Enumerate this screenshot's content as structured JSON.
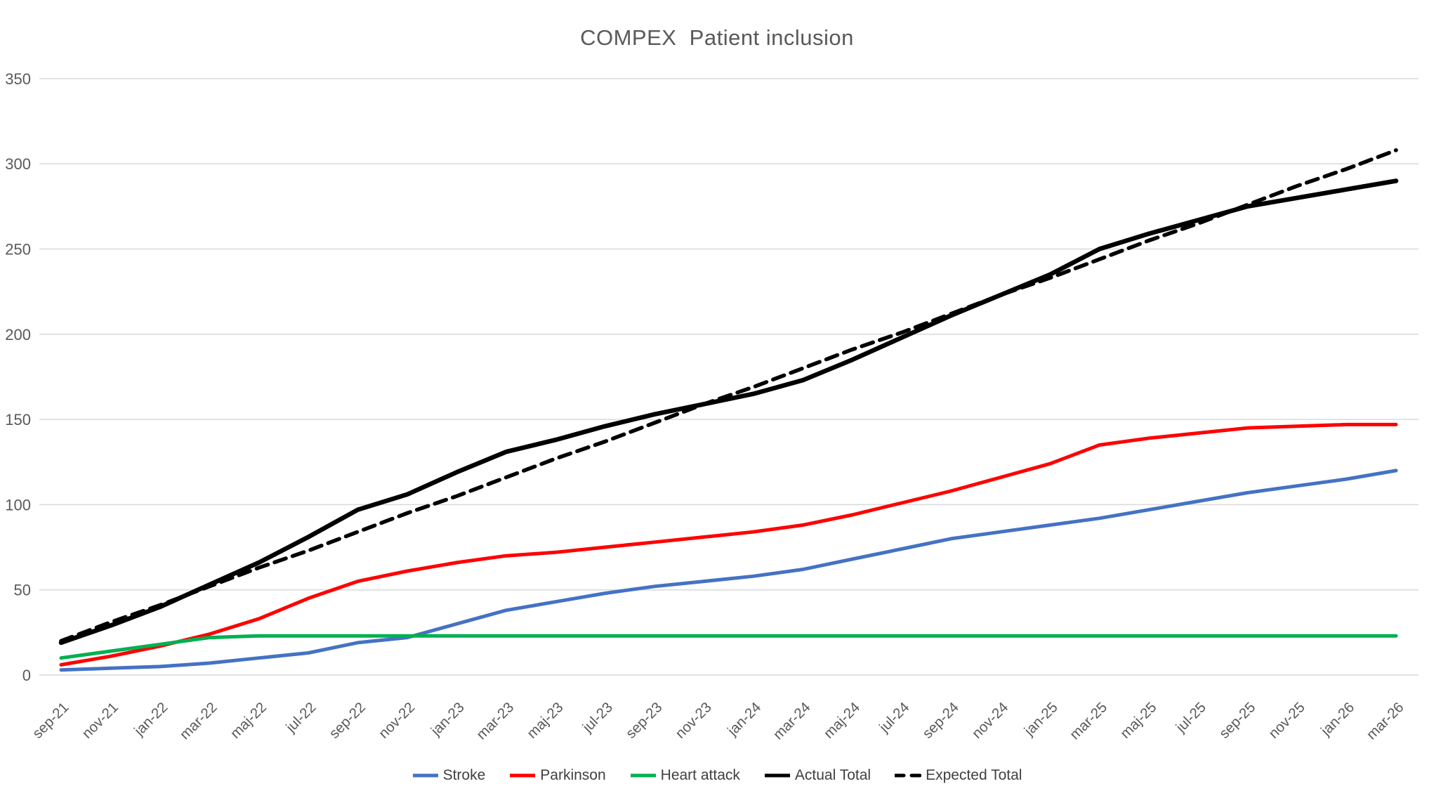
{
  "chart_data": {
    "type": "line",
    "title": "COMPEX  Patient inclusion",
    "categories": [
      "sep-21",
      "nov-21",
      "jan-22",
      "mar-22",
      "maj-22",
      "jul-22",
      "sep-22",
      "nov-22",
      "jan-23",
      "mar-23",
      "maj-23",
      "jul-23",
      "sep-23",
      "nov-23",
      "jan-24",
      "mar-24",
      "maj-24",
      "jul-24",
      "sep-24",
      "nov-24",
      "jan-25",
      "mar-25",
      "maj-25",
      "jul-25",
      "sep-25",
      "nov-25",
      "jan-26",
      "mar-26"
    ],
    "series": [
      {
        "name": "Stroke",
        "color": "#4472C4",
        "dash": "none",
        "values": [
          3,
          4,
          5,
          7,
          10,
          13,
          19,
          22,
          30,
          38,
          43,
          48,
          52,
          55,
          58,
          62,
          68,
          74,
          80,
          84,
          88,
          92,
          97,
          102,
          107,
          111,
          115,
          120
        ]
      },
      {
        "name": "Parkinson",
        "color": "#FF0000",
        "dash": "none",
        "values": [
          6,
          11,
          17,
          24,
          33,
          45,
          55,
          61,
          66,
          70,
          72,
          75,
          78,
          81,
          84,
          88,
          94,
          101,
          108,
          116,
          124,
          135,
          139,
          142,
          145,
          146,
          147,
          147
        ]
      },
      {
        "name": "Heart attack",
        "color": "#00B050",
        "dash": "none",
        "values": [
          10,
          14,
          18,
          22,
          23,
          23,
          23,
          23,
          23,
          23,
          23,
          23,
          23,
          23,
          23,
          23,
          23,
          23,
          23,
          23,
          23,
          23,
          23,
          23,
          23,
          23,
          23,
          23
        ]
      },
      {
        "name": "Actual Total",
        "color": "#000000",
        "dash": "none",
        "values": [
          19,
          29,
          40,
          53,
          66,
          81,
          97,
          106,
          119,
          131,
          138,
          146,
          153,
          159,
          165,
          173,
          185,
          198,
          211,
          223,
          235,
          250,
          259,
          267,
          275,
          280,
          285,
          290
        ]
      },
      {
        "name": "Expected Total",
        "color": "#000000",
        "dash": "dashed",
        "values": [
          20,
          31,
          41,
          52,
          63,
          73,
          84,
          95,
          105,
          116,
          127,
          137,
          148,
          159,
          169,
          180,
          191,
          201,
          212,
          223,
          233,
          244,
          255,
          265,
          276,
          287,
          297,
          308
        ]
      }
    ],
    "xlabel": "",
    "ylabel": "",
    "ylim": [
      0,
      350
    ],
    "ytick_step": 50,
    "grid": "horizontal",
    "legend_position": "bottom"
  },
  "colors": {
    "grid": "#D9D9D9",
    "axis_text": "#595959",
    "title_text": "#595959",
    "legend_text": "#404040",
    "background": "#FFFFFF"
  }
}
